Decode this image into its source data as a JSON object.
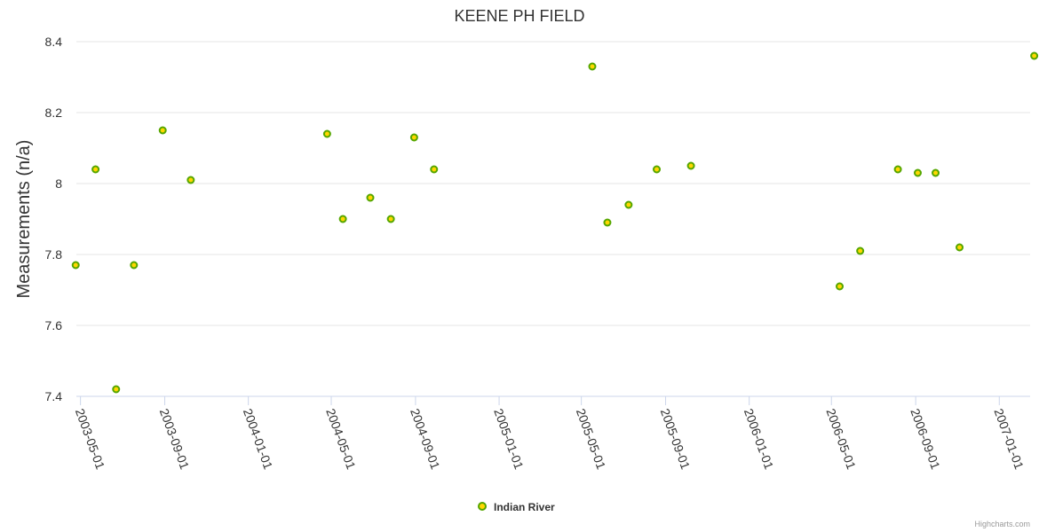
{
  "chart_data": {
    "type": "scatter",
    "title": "KEENE PH FIELD",
    "ylabel": "Measurements (n/a)",
    "xlabel": "",
    "ylim": [
      7.4,
      8.4
    ],
    "yticks": [
      "7.4",
      "7.6",
      "7.8",
      "8",
      "8.2",
      "8.4"
    ],
    "xlim": [
      "2003-04-25",
      "2007-02-15"
    ],
    "xticks": [
      "2003-05-01",
      "2003-09-01",
      "2004-01-01",
      "2004-05-01",
      "2004-09-01",
      "2005-01-01",
      "2005-05-01",
      "2005-09-01",
      "2006-01-01",
      "2006-05-01",
      "2006-09-01",
      "2007-01-01"
    ],
    "grid": true,
    "legend_position": "bottom-center",
    "series": [
      {
        "name": "Indian River",
        "color": "#55a600",
        "marker_fill": "#ffd700",
        "points": [
          {
            "x": "2003-04-24",
            "y": 7.77
          },
          {
            "x": "2003-05-23",
            "y": 8.04
          },
          {
            "x": "2003-06-22",
            "y": 7.42
          },
          {
            "x": "2003-07-18",
            "y": 7.77
          },
          {
            "x": "2003-08-29",
            "y": 8.15
          },
          {
            "x": "2003-10-09",
            "y": 8.01
          },
          {
            "x": "2004-04-25",
            "y": 8.14
          },
          {
            "x": "2004-05-18",
            "y": 7.9
          },
          {
            "x": "2004-06-27",
            "y": 7.96
          },
          {
            "x": "2004-07-27",
            "y": 7.9
          },
          {
            "x": "2004-08-30",
            "y": 8.13
          },
          {
            "x": "2004-09-28",
            "y": 8.04
          },
          {
            "x": "2005-05-17",
            "y": 8.33
          },
          {
            "x": "2005-06-08",
            "y": 7.89
          },
          {
            "x": "2005-07-09",
            "y": 7.94
          },
          {
            "x": "2005-08-19",
            "y": 8.04
          },
          {
            "x": "2005-10-08",
            "y": 8.05
          },
          {
            "x": "2006-05-13",
            "y": 7.71
          },
          {
            "x": "2006-06-12",
            "y": 7.81
          },
          {
            "x": "2006-08-06",
            "y": 8.04
          },
          {
            "x": "2006-09-04",
            "y": 8.03
          },
          {
            "x": "2006-09-30",
            "y": 8.03
          },
          {
            "x": "2006-11-04",
            "y": 7.82
          },
          {
            "x": "2007-02-21",
            "y": 8.36
          }
        ]
      }
    ]
  },
  "credits": "Highcharts.com"
}
